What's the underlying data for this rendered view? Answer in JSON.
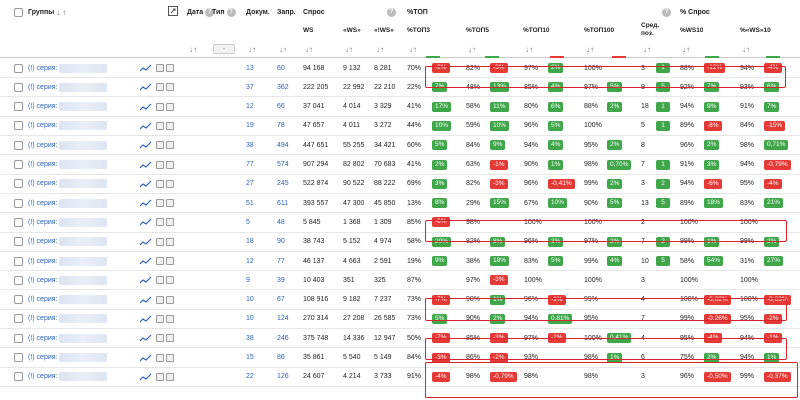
{
  "header": {
    "groups": "Группы",
    "date": "Дата",
    "type": "Тип",
    "docs": "Докум.",
    "queries": "Запр.",
    "demand": "Спрос",
    "top": "%ТОП",
    "demand_pct": "% Спрос",
    "ws": "WS",
    "qws": "«WS»",
    "ews": "«!WS»",
    "top3": "%ТОП3",
    "top5": "%ТОП5",
    "top10": "%ТОП10",
    "top100": "%ТОП100",
    "avgpos": "Сред. поз.",
    "ws10": "%WS10",
    "qws10": "%«WS»10",
    "type_select": "-",
    "sort_down": "↓",
    "sort_up": "↑",
    "help": "?"
  },
  "rows": [
    {
      "g": "(!) серия:",
      "docs": "13",
      "q": "60",
      "ws": "94 168",
      "qws": "9 132",
      "ews": "8 281",
      "p": "70%",
      "t3": {
        "b": "-2%",
        "c": "r"
      },
      "t5": "82%",
      "t5b": {
        "b": "-3%",
        "c": "r"
      },
      "t10": "97%",
      "t10b": {
        "b": "2%",
        "c": "g"
      },
      "t100": "100%",
      "t100b": null,
      "pos": "3",
      "posb": {
        "b": "1",
        "c": "g"
      },
      "w10": "88%",
      "w10b": {
        "b": "-12%",
        "c": "r"
      },
      "q10": "94%",
      "q10b": {
        "b": "-4%",
        "c": "r"
      }
    },
    {
      "g": "(!) серия:",
      "docs": "37",
      "q": "362",
      "ws": "222 205",
      "qws": "22 992",
      "ews": "22 210",
      "p": "22%",
      "t3": {
        "b": "7%",
        "c": "g"
      },
      "t5": "48%",
      "t5b": {
        "b": "13%",
        "c": "g"
      },
      "t10": "85%",
      "t10b": {
        "b": "4%",
        "c": "g"
      },
      "t100": "97%",
      "t100b": {
        "b": "5%",
        "c": "g"
      },
      "pos": "9",
      "posb": {
        "b": "5",
        "c": "g"
      },
      "w10": "92%",
      "w10b": {
        "b": "7%",
        "c": "g"
      },
      "q10": "93%",
      "q10b": {
        "b": "6%",
        "c": "g"
      }
    },
    {
      "g": "(!) серия:",
      "docs": "12",
      "q": "66",
      "ws": "37 041",
      "qws": "4 014",
      "ews": "3 329",
      "p": "41%",
      "t3": {
        "b": "17%",
        "c": "g"
      },
      "t5": "58%",
      "t5b": {
        "b": "11%",
        "c": "g"
      },
      "t10": "80%",
      "t10b": {
        "b": "6%",
        "c": "g"
      },
      "t100": "88%",
      "t100b": {
        "b": "2%",
        "c": "g"
      },
      "pos": "18",
      "posb": {
        "b": "1",
        "c": "g"
      },
      "w10": "94%",
      "w10b": {
        "b": "9%",
        "c": "g"
      },
      "q10": "91%",
      "q10b": {
        "b": "7%",
        "c": "g"
      }
    },
    {
      "g": "(!) серия:",
      "docs": "19",
      "q": "78",
      "ws": "47 657",
      "qws": "4 011",
      "ews": "3 272",
      "p": "44%",
      "t3": {
        "b": "10%",
        "c": "g"
      },
      "t5": "59%",
      "t5b": {
        "b": "10%",
        "c": "g"
      },
      "t10": "96%",
      "t10b": {
        "b": "5%",
        "c": "g"
      },
      "t100": "100%",
      "t100b": null,
      "pos": "5",
      "posb": {
        "b": "1",
        "c": "g"
      },
      "w10": "89%",
      "w10b": {
        "b": "-8%",
        "c": "r"
      },
      "q10": "84%",
      "q10b": {
        "b": "-15%",
        "c": "r"
      }
    },
    {
      "g": "(!) серия:",
      "docs": "38",
      "q": "494",
      "ws": "447 651",
      "qws": "55 255",
      "ews": "34 421",
      "p": "60%",
      "t3": {
        "b": "5%",
        "c": "g"
      },
      "t5": "84%",
      "t5b": {
        "b": "9%",
        "c": "g"
      },
      "t10": "94%",
      "t10b": {
        "b": "4%",
        "c": "g"
      },
      "t100": "95%",
      "t100b": {
        "b": "2%",
        "c": "g"
      },
      "pos": "8",
      "posb": null,
      "w10": "96%",
      "w10b": {
        "b": "2%",
        "c": "g"
      },
      "q10": "98%",
      "q10b": {
        "b": "0,71%",
        "c": "g"
      }
    },
    {
      "g": "(!) серия:",
      "docs": "77",
      "q": "574",
      "ws": "907 294",
      "qws": "82 802",
      "ews": "70 683",
      "p": "41%",
      "t3": {
        "b": "2%",
        "c": "g"
      },
      "t5": "63%",
      "t5b": {
        "b": "-1%",
        "c": "r"
      },
      "t10": "90%",
      "t10b": {
        "b": "1%",
        "c": "g"
      },
      "t100": "98%",
      "t100b": {
        "b": "0,70%",
        "c": "g"
      },
      "pos": "7",
      "posb": {
        "b": "1",
        "c": "g"
      },
      "w10": "91%",
      "w10b": {
        "b": "3%",
        "c": "g"
      },
      "q10": "94%",
      "q10b": {
        "b": "-0,79%",
        "c": "r"
      }
    },
    {
      "g": "(!) серия:",
      "docs": "27",
      "q": "245",
      "ws": "522 874",
      "qws": "90 522",
      "ews": "88 222",
      "p": "69%",
      "t3": {
        "b": "3%",
        "c": "g"
      },
      "t5": "82%",
      "t5b": {
        "b": "-3%",
        "c": "r"
      },
      "t10": "96%",
      "t10b": {
        "b": "-0,41%",
        "c": "r"
      },
      "t100": "99%",
      "t100b": {
        "b": "2%",
        "c": "g"
      },
      "pos": "3",
      "posb": {
        "b": "2",
        "c": "g"
      },
      "w10": "94%",
      "w10b": {
        "b": "-6%",
        "c": "r"
      },
      "q10": "95%",
      "q10b": {
        "b": "-4%",
        "c": "r"
      }
    },
    {
      "g": "(!) серия:",
      "docs": "51",
      "q": "611",
      "ws": "393 557",
      "qws": "47 300",
      "ews": "45 850",
      "p": "13%",
      "t3": {
        "b": "8%",
        "c": "g"
      },
      "t5": "29%",
      "t5b": {
        "b": "15%",
        "c": "g"
      },
      "t10": "67%",
      "t10b": {
        "b": "10%",
        "c": "g"
      },
      "t100": "90%",
      "t100b": {
        "b": "5%",
        "c": "g"
      },
      "pos": "13",
      "posb": {
        "b": "5",
        "c": "g"
      },
      "w10": "89%",
      "w10b": {
        "b": "18%",
        "c": "g"
      },
      "q10": "83%",
      "q10b": {
        "b": "21%",
        "c": "g"
      }
    },
    {
      "g": "(!) серия:",
      "docs": "5",
      "q": "48",
      "ws": "5 845",
      "qws": "1 368",
      "ews": "1 309",
      "p": "85%",
      "t3": {
        "b": "-6%",
        "c": "r"
      },
      "t5": "98%",
      "t5b": null,
      "t10": "100%",
      "t10b": null,
      "t100": "100%",
      "t100b": null,
      "pos": "2",
      "posb": null,
      "w10": "100%",
      "w10b": null,
      "q10": "100%",
      "q10b": null
    },
    {
      "g": "(!) серия:",
      "docs": "18",
      "q": "90",
      "ws": "38 743",
      "qws": "5 152",
      "ews": "4 974",
      "p": "58%",
      "t3": {
        "b": "20%",
        "c": "g"
      },
      "t5": "82%",
      "t5b": {
        "b": "8%",
        "c": "g"
      },
      "t10": "96%",
      "t10b": {
        "b": "3%",
        "c": "g"
      },
      "t100": "97%",
      "t100b": {
        "b": "2%",
        "c": "g"
      },
      "pos": "7",
      "posb": {
        "b": "2",
        "c": "g"
      },
      "w10": "99%",
      "w10b": {
        "b": "1%",
        "c": "g"
      },
      "q10": "99%",
      "q10b": {
        "b": "2%",
        "c": "g"
      }
    },
    {
      "g": "(!) серия:",
      "docs": "12",
      "q": "77",
      "ws": "46 137",
      "qws": "4 663",
      "ews": "2 591",
      "p": "19%",
      "t3": {
        "b": "9%",
        "c": "g"
      },
      "t5": "38%",
      "t5b": {
        "b": "18%",
        "c": "g"
      },
      "t10": "83%",
      "t10b": {
        "b": "5%",
        "c": "g"
      },
      "t100": "99%",
      "t100b": {
        "b": "4%",
        "c": "g"
      },
      "pos": "10",
      "posb": {
        "b": "5",
        "c": "g"
      },
      "w10": "58%",
      "w10b": {
        "b": "54%",
        "c": "g"
      },
      "q10": "31%",
      "q10b": {
        "b": "27%",
        "c": "g"
      }
    },
    {
      "g": "(!) серия:",
      "docs": "9",
      "q": "39",
      "ws": "10 403",
      "qws": "351",
      "ews": "325",
      "p": "87%",
      "t3": null,
      "t5": "97%",
      "t5b": {
        "b": "-3%",
        "c": "r"
      },
      "t10": "100%",
      "t10b": null,
      "t100": "100%",
      "t100b": null,
      "pos": "3",
      "posb": null,
      "w10": "100%",
      "w10b": null,
      "q10": "100%",
      "q10b": null
    },
    {
      "g": "(!) серия:",
      "docs": "10",
      "q": "67",
      "ws": "108 916",
      "qws": "9 182",
      "ews": "7 237",
      "p": "73%",
      "t3": {
        "b": "-7%",
        "c": "r"
      },
      "t5": "90%",
      "t5b": {
        "b": "1%",
        "c": "g"
      },
      "t10": "96%",
      "t10b": {
        "b": "-1%",
        "c": "r"
      },
      "t100": "99%",
      "t100b": null,
      "pos": "4",
      "posb": null,
      "w10": "100%",
      "w10b": {
        "b": "-0,02%",
        "c": "r"
      },
      "q10": "100%",
      "q10b": {
        "b": "-0,03%",
        "c": "r"
      }
    },
    {
      "g": "(!) серия:",
      "docs": "10",
      "q": "124",
      "ws": "270 314",
      "qws": "27 208",
      "ews": "26 585",
      "p": "73%",
      "t3": {
        "b": "5%",
        "c": "g"
      },
      "t5": "90%",
      "t5b": {
        "b": "2%",
        "c": "g"
      },
      "t10": "94%",
      "t10b": {
        "b": "0,81%",
        "c": "g"
      },
      "t100": "95%",
      "t100b": null,
      "pos": "7",
      "posb": null,
      "w10": "99%",
      "w10b": {
        "b": "-0,26%",
        "c": "r"
      },
      "q10": "95%",
      "q10b": {
        "b": "-2%",
        "c": "r"
      }
    },
    {
      "g": "(!) серия:",
      "docs": "38",
      "q": "246",
      "ws": "375 748",
      "qws": "14 336",
      "ews": "12 947",
      "p": "50%",
      "t3": {
        "b": "-7%",
        "c": "r"
      },
      "t5": "85%",
      "t5b": {
        "b": "-3%",
        "c": "r"
      },
      "t10": "97%",
      "t10b": {
        "b": "-2%",
        "c": "r"
      },
      "t100": "100%",
      "t100b": {
        "b": "0,41%",
        "c": "g"
      },
      "pos": "4",
      "posb": null,
      "w10": "95%",
      "w10b": {
        "b": "-4%",
        "c": "r"
      },
      "q10": "94%",
      "q10b": {
        "b": "-1%",
        "c": "r"
      }
    },
    {
      "g": "(!) серия:",
      "docs": "15",
      "q": "86",
      "ws": "35 861",
      "qws": "5 540",
      "ews": "5 149",
      "p": "84%",
      "t3": {
        "b": "-3%",
        "c": "r"
      },
      "t5": "86%",
      "t5b": {
        "b": "-2%",
        "c": "r"
      },
      "t10": "93%",
      "t10b": null,
      "t100": "98%",
      "t100b": {
        "b": "1%",
        "c": "g"
      },
      "pos": "6",
      "posb": null,
      "w10": "75%",
      "w10b": {
        "b": "2%",
        "c": "g"
      },
      "q10": "94%",
      "q10b": {
        "b": "1%",
        "c": "g"
      }
    },
    {
      "g": "(!) серия:",
      "docs": "22",
      "q": "126",
      "ws": "24 607",
      "qws": "4 214",
      "ews": "3 733",
      "p": "91%",
      "t3": {
        "b": "-4%",
        "c": "r"
      },
      "t5": "98%",
      "t5b": {
        "b": "-0,79%",
        "c": "r"
      },
      "t10": "98%",
      "t10b": null,
      "t100": "98%",
      "t100b": null,
      "pos": "3",
      "posb": null,
      "w10": "96%",
      "w10b": {
        "b": "-0,50%",
        "c": "r"
      },
      "q10": "99%",
      "q10b": {
        "b": "-0,37%",
        "c": "r"
      }
    }
  ]
}
